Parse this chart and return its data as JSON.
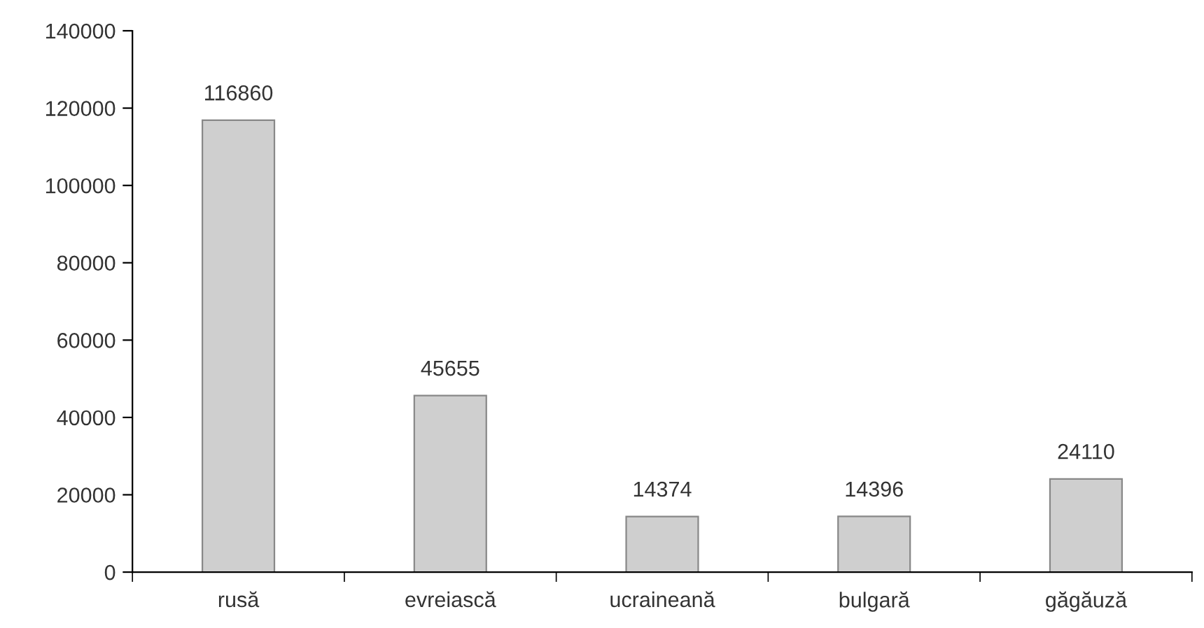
{
  "chart_data": {
    "type": "bar",
    "categories": [
      "rusă",
      "evreiască",
      "ucraineană",
      "bulgară",
      "găgăuză"
    ],
    "values": [
      116860,
      45655,
      14374,
      14396,
      24110
    ],
    "color": "#cfcfcf",
    "ylim": [
      0,
      140000
    ],
    "yticks": [
      0,
      20000,
      40000,
      60000,
      80000,
      100000,
      120000,
      140000
    ],
    "grid": false,
    "data_labels": true
  }
}
